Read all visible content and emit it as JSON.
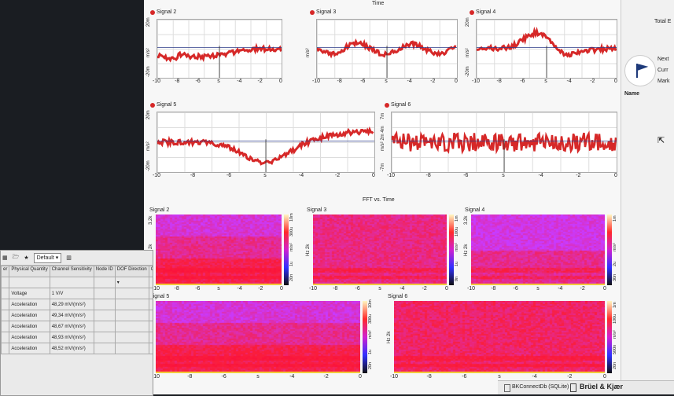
{
  "sections": {
    "time_title": "Time",
    "fft_title": "FFT vs. Time"
  },
  "time_panels": [
    {
      "name": "Signal 2",
      "ytop": "20m",
      "ymid": "m/s²",
      "ybot": "-20m"
    },
    {
      "name": "Signal 3",
      "ytop": "",
      "ymid": "m/s²",
      "ybot": ""
    },
    {
      "name": "Signal 4",
      "ytop": "20m",
      "ymid": "m/s²",
      "ybot": "-20m"
    },
    {
      "name": "Signal 5",
      "ytop": "20m",
      "ymid": "m/s²",
      "ybot": "-20m"
    },
    {
      "name": "Signal 6",
      "ytop": "7m",
      "ymid": "m/s² 2m 4m",
      "ybot": "-7m"
    }
  ],
  "x_ticks": [
    "-10",
    "-8",
    "-6",
    "s",
    "-4",
    "-2",
    "0"
  ],
  "fft_panels": [
    {
      "name": "Signal 2",
      "yl": "Hz 2k",
      "ytop": "3.2k",
      "c1": "10m",
      "c2": "300u",
      "c3": "m/s²",
      "c4": "1u",
      "c5": "20n"
    },
    {
      "name": "Signal 3",
      "yl": "Hz 2k",
      "ytop": "",
      "c1": "1m",
      "c2": "100u",
      "c3": "m/s²",
      "c4": "1u",
      "c5": "9n"
    },
    {
      "name": "Signal 4",
      "yl": "Hz 2k",
      "ytop": "3.2k",
      "c1": "1m",
      "c2": "",
      "c3": "m/s²",
      "c4": "2u",
      "c5": "30n"
    },
    {
      "name": "Signal 5",
      "yl": "Hz 2k",
      "ytop": "",
      "c1": "10m",
      "c2": "300u",
      "c3": "m/s²",
      "c4": "1u",
      "c5": "20n"
    },
    {
      "name": "Signal 6",
      "yl": "Hz 2k",
      "ytop": "",
      "c1": "1m",
      "c2": "100u",
      "c3": "m/s²",
      "c4": "500n",
      "c5": "20n"
    }
  ],
  "right_panel": {
    "top": "Total E",
    "next": "Next",
    "curr": "Curr",
    "mark": "Mark",
    "name": "Name"
  },
  "status": {
    "db": "BKConnectDb (SQLite)",
    "brand": "Brüel & Kjær"
  },
  "left_window": {
    "preset": "Default",
    "headers": [
      "er",
      "Physical Quantity",
      "Channel Sensitivity",
      "Node ID",
      "DOF Direction",
      "Cor ID"
    ],
    "rows": [
      {
        "q": "Voltage",
        "s": "1 V/V"
      },
      {
        "q": "Acceleration",
        "s": "48,29 mV/(m/s²)"
      },
      {
        "q": "Acceleration",
        "s": "49,34 mV/(m/s²)"
      },
      {
        "q": "Acceleration",
        "s": "48,67 mV/(m/s²)"
      },
      {
        "q": "Acceleration",
        "s": "48,93 mV/(m/s²)"
      },
      {
        "q": "Acceleration",
        "s": "48,52 mV/(m/s²)"
      }
    ]
  },
  "colors": {
    "signal": "#d62828",
    "spec_red": "#e8205a",
    "spec_blue": "#6a4df0"
  }
}
